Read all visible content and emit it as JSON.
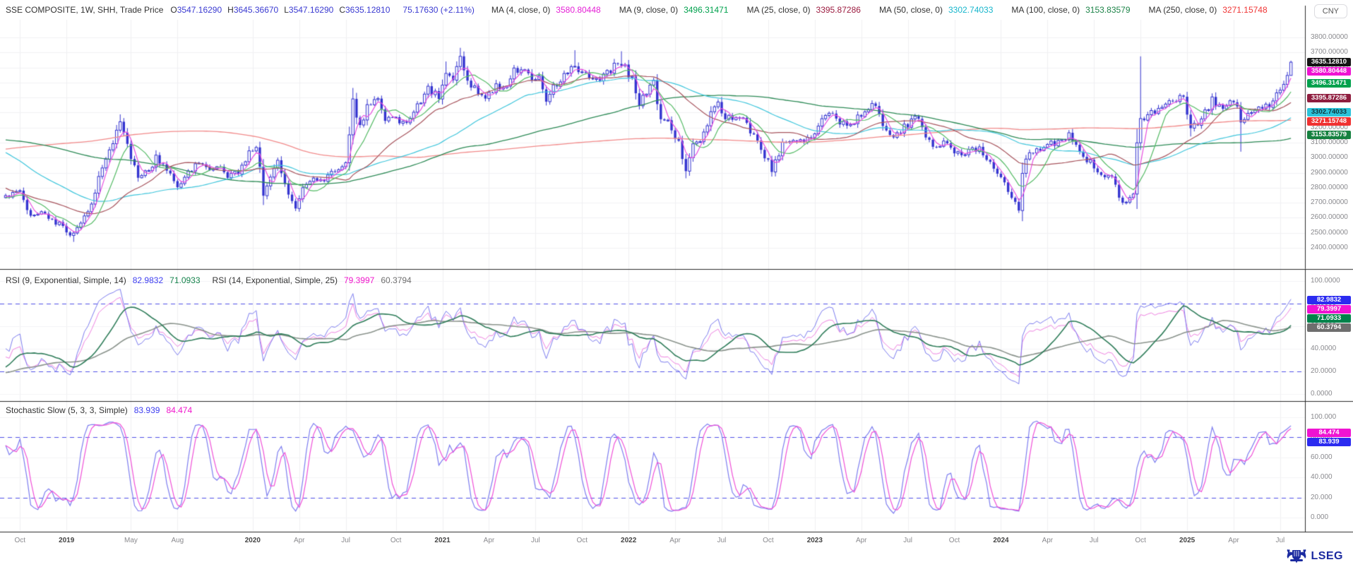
{
  "header": {
    "instrument": "SSE COMPOSITE, 1W, SHH, Trade Price",
    "ohlc": [
      {
        "label": "O",
        "value": "3547.16290"
      },
      {
        "label": "H",
        "value": "3645.36670"
      },
      {
        "label": "L",
        "value": "3547.16290"
      },
      {
        "label": "C",
        "value": "3635.12810"
      }
    ],
    "change": "75.17630 (+2.11%)",
    "mas": [
      {
        "label": "MA (4, close, 0)",
        "value": "3580.80448",
        "color": "#e520d6"
      },
      {
        "label": "MA (9, close, 0)",
        "value": "3496.31471",
        "color": "#00a14d"
      },
      {
        "label": "MA (25, close, 0)",
        "value": "3395.87286",
        "color": "#9c1c40"
      },
      {
        "label": "MA (50, close, 0)",
        "value": "3302.74033",
        "color": "#17b6cc"
      },
      {
        "label": "MA (100, close, 0)",
        "value": "3153.83579",
        "color": "#1e8449"
      },
      {
        "label": "MA (250, close, 0)",
        "value": "3271.15748",
        "color": "#f03535"
      }
    ],
    "currency": "CNY"
  },
  "main_panel": {
    "price_ticks": [
      "3800.00000",
      "3700.00000",
      "3600.00000",
      "3500.00000",
      "3400.00000",
      "3300.00000",
      "3200.00000",
      "3100.00000",
      "3000.00000",
      "2900.00000",
      "2800.00000",
      "2700.00000",
      "2600.00000",
      "2500.00000",
      "2400.00000"
    ],
    "badges": [
      {
        "text": "3635.12810",
        "value": 3635.1281,
        "bg": "#141414",
        "fg": "#ffffff"
      },
      {
        "text": "3580.80448",
        "value": 3580.80448,
        "bg": "#ef13d2",
        "fg": "#ffffff"
      },
      {
        "text": "3496.31471",
        "value": 3496.31471,
        "bg": "#00a14d",
        "fg": "#ffffff"
      },
      {
        "text": "3395.87286",
        "value": 3395.87286,
        "bg": "#8f1d3f",
        "fg": "#ffffff"
      },
      {
        "text": "3302.74033",
        "value": 3302.74033,
        "bg": "#2cc3da",
        "fg": "#10333a"
      },
      {
        "text": "3271.15748",
        "value": 3271.15748,
        "bg": "#f03131",
        "fg": "#ffffff"
      },
      {
        "text": "3153.83579",
        "value": 3153.83579,
        "bg": "#15813f",
        "fg": "#ffffff"
      }
    ]
  },
  "rsi_panel": {
    "title1": "RSI (9, Exponential, Simple, 14)",
    "value1": "82.9832",
    "value1s": "71.0933",
    "title2": "RSI (14, Exponential, Simple, 25)",
    "value2": "79.3997",
    "value2s": "60.3794",
    "ticks": [
      "100.0000",
      "80.0000",
      "60.0000",
      "40.0000",
      "20.0000",
      "0.0000"
    ],
    "tick_values": [
      100,
      80,
      60,
      40,
      20,
      0
    ],
    "badges": [
      {
        "text": "82.9832",
        "value": 82.9832,
        "bg": "#2b2bf0",
        "fg": "#ffffff"
      },
      {
        "text": "79.3997",
        "value": 79.3997,
        "bg": "#ef13d2",
        "fg": "#ffffff"
      },
      {
        "text": "71.0933",
        "value": 71.0933,
        "bg": "#00824a",
        "fg": "#ffffff"
      },
      {
        "text": "60.3794",
        "value": 60.3794,
        "bg": "#6e6e6e",
        "fg": "#ffffff"
      }
    ]
  },
  "stoch_panel": {
    "title": "Stochastic Slow (5, 3, 3, Simple)",
    "value_k": "83.939",
    "value_d": "84.474",
    "ticks": [
      "100.000",
      "80.000",
      "60.000",
      "40.000",
      "20.000",
      "0.000"
    ],
    "tick_values": [
      100,
      80,
      60,
      40,
      20,
      0
    ],
    "badges": [
      {
        "text": "84.474",
        "value": 84.474,
        "bg": "#ef13d2",
        "fg": "#ffffff"
      },
      {
        "text": "83.939",
        "value": 83.939,
        "bg": "#2b2bf0",
        "fg": "#ffffff"
      }
    ]
  },
  "x_axis": {
    "ticks": [
      {
        "wk": 4,
        "label": "Oct",
        "year": false
      },
      {
        "wk": 17,
        "label": "2019",
        "year": true
      },
      {
        "wk": 35,
        "label": "May",
        "year": false
      },
      {
        "wk": 48,
        "label": "Aug",
        "year": false
      },
      {
        "wk": 69,
        "label": "2020",
        "year": true
      },
      {
        "wk": 82,
        "label": "Apr",
        "year": false
      },
      {
        "wk": 95,
        "label": "Jul",
        "year": false
      },
      {
        "wk": 109,
        "label": "Oct",
        "year": false
      },
      {
        "wk": 122,
        "label": "2021",
        "year": true
      },
      {
        "wk": 135,
        "label": "Apr",
        "year": false
      },
      {
        "wk": 148,
        "label": "Jul",
        "year": false
      },
      {
        "wk": 161,
        "label": "Oct",
        "year": false
      },
      {
        "wk": 174,
        "label": "2022",
        "year": true
      },
      {
        "wk": 187,
        "label": "Apr",
        "year": false
      },
      {
        "wk": 200,
        "label": "Jul",
        "year": false
      },
      {
        "wk": 213,
        "label": "Oct",
        "year": false
      },
      {
        "wk": 226,
        "label": "2023",
        "year": true
      },
      {
        "wk": 239,
        "label": "Apr",
        "year": false
      },
      {
        "wk": 252,
        "label": "Jul",
        "year": false
      },
      {
        "wk": 265,
        "label": "Oct",
        "year": false
      },
      {
        "wk": 278,
        "label": "2024",
        "year": true
      },
      {
        "wk": 291,
        "label": "Apr",
        "year": false
      },
      {
        "wk": 304,
        "label": "Jul",
        "year": false
      },
      {
        "wk": 317,
        "label": "Oct",
        "year": false
      },
      {
        "wk": 330,
        "label": "2025",
        "year": true
      },
      {
        "wk": 343,
        "label": "Apr",
        "year": false
      },
      {
        "wk": 356,
        "label": "Jul",
        "year": false
      }
    ]
  },
  "branding": {
    "text": "LSEG"
  },
  "chart_data": {
    "type": "candlestick",
    "title": "SSE COMPOSITE, 1W, SHH, Trade Price",
    "currency": "CNY",
    "interval": "1W",
    "n_weeks": 360,
    "price_axis_range": [
      2259,
      3917
    ],
    "last_candle": {
      "o": 3547.1629,
      "h": 3645.3667,
      "l": 3547.1629,
      "c": 3635.1281,
      "change": 75.1763,
      "change_pct": 2.11
    },
    "close_anchors_prehistory": [
      [
        -260,
        2150
      ],
      [
        -236,
        2050
      ],
      [
        -221,
        2050
      ],
      [
        -201,
        2680
      ],
      [
        -191,
        3235
      ],
      [
        -176,
        4440
      ],
      [
        -168,
        4900
      ],
      [
        -161,
        3700
      ],
      [
        -156,
        3200
      ],
      [
        -148,
        3080
      ],
      [
        -141,
        3580
      ],
      [
        -136,
        3540
      ],
      [
        -132,
        2740
      ],
      [
        -121,
        3000
      ],
      [
        -106,
        2950
      ],
      [
        -96,
        3000
      ],
      [
        -86,
        3100
      ],
      [
        -76,
        3220
      ],
      [
        -66,
        3290
      ],
      [
        -56,
        3330
      ],
      [
        -44,
        3540
      ],
      [
        -36,
        3160
      ],
      [
        -26,
        3070
      ],
      [
        -16,
        2780
      ],
      [
        -6,
        2720
      ],
      [
        -1,
        2750
      ]
    ],
    "close_anchors": [
      [
        0,
        2740
      ],
      [
        4,
        2770
      ],
      [
        7,
        2600
      ],
      [
        10,
        2650
      ],
      [
        13,
        2590
      ],
      [
        16,
        2540
      ],
      [
        19,
        2480
      ],
      [
        21,
        2560
      ],
      [
        24,
        2680
      ],
      [
        27,
        2940
      ],
      [
        30,
        3090
      ],
      [
        32,
        3250
      ],
      [
        34,
        3080
      ],
      [
        37,
        2880
      ],
      [
        40,
        2900
      ],
      [
        42,
        3000
      ],
      [
        45,
        2920
      ],
      [
        48,
        2790
      ],
      [
        51,
        2890
      ],
      [
        54,
        2980
      ],
      [
        56,
        2930
      ],
      [
        59,
        2950
      ],
      [
        62,
        2880
      ],
      [
        65,
        2900
      ],
      [
        68,
        3040
      ],
      [
        70,
        3090
      ],
      [
        72,
        2750
      ],
      [
        74,
        2880
      ],
      [
        76,
        2970
      ],
      [
        79,
        2750
      ],
      [
        81,
        2660
      ],
      [
        83,
        2800
      ],
      [
        86,
        2860
      ],
      [
        89,
        2850
      ],
      [
        92,
        2920
      ],
      [
        95,
        2980
      ],
      [
        96,
        3150
      ],
      [
        97,
        3380
      ],
      [
        99,
        3200
      ],
      [
        101,
        3350
      ],
      [
        104,
        3400
      ],
      [
        106,
        3260
      ],
      [
        109,
        3270
      ],
      [
        112,
        3220
      ],
      [
        115,
        3360
      ],
      [
        118,
        3450
      ],
      [
        121,
        3400
      ],
      [
        123,
        3570
      ],
      [
        125,
        3500
      ],
      [
        127,
        3680
      ],
      [
        129,
        3510
      ],
      [
        132,
        3440
      ],
      [
        134,
        3420
      ],
      [
        137,
        3470
      ],
      [
        140,
        3490
      ],
      [
        142,
        3580
      ],
      [
        145,
        3590
      ],
      [
        147,
        3530
      ],
      [
        149,
        3530
      ],
      [
        151,
        3400
      ],
      [
        154,
        3500
      ],
      [
        156,
        3560
      ],
      [
        159,
        3615
      ],
      [
        161,
        3570
      ],
      [
        164,
        3520
      ],
      [
        167,
        3540
      ],
      [
        170,
        3610
      ],
      [
        172,
        3640
      ],
      [
        175,
        3520
      ],
      [
        177,
        3360
      ],
      [
        179,
        3450
      ],
      [
        181,
        3490
      ],
      [
        183,
        3250
      ],
      [
        185,
        3250
      ],
      [
        188,
        3090
      ],
      [
        190,
        2890
      ],
      [
        192,
        3080
      ],
      [
        194,
        3130
      ],
      [
        197,
        3280
      ],
      [
        199,
        3390
      ],
      [
        201,
        3250
      ],
      [
        204,
        3280
      ],
      [
        207,
        3230
      ],
      [
        210,
        3100
      ],
      [
        212,
        3020
      ],
      [
        214,
        2920
      ],
      [
        217,
        3080
      ],
      [
        220,
        3130
      ],
      [
        223,
        3090
      ],
      [
        226,
        3160
      ],
      [
        228,
        3260
      ],
      [
        231,
        3280
      ],
      [
        234,
        3230
      ],
      [
        237,
        3250
      ],
      [
        240,
        3320
      ],
      [
        243,
        3350
      ],
      [
        245,
        3210
      ],
      [
        248,
        3150
      ],
      [
        251,
        3200
      ],
      [
        254,
        3280
      ],
      [
        257,
        3150
      ],
      [
        260,
        3060
      ],
      [
        263,
        3110
      ],
      [
        266,
        3020
      ],
      [
        269,
        3040
      ],
      [
        272,
        3050
      ],
      [
        275,
        2970
      ],
      [
        278,
        2880
      ],
      [
        281,
        2730
      ],
      [
        283,
        2640
      ],
      [
        284,
        2880
      ],
      [
        285,
        3000
      ],
      [
        288,
        3050
      ],
      [
        291,
        3090
      ],
      [
        294,
        3100
      ],
      [
        297,
        3150
      ],
      [
        300,
        3030
      ],
      [
        303,
        2970
      ],
      [
        306,
        2900
      ],
      [
        309,
        2860
      ],
      [
        312,
        2700
      ],
      [
        315,
        2750
      ],
      [
        316,
        3088
      ],
      [
        317,
        3260
      ],
      [
        318,
        3230
      ],
      [
        320,
        3310
      ],
      [
        323,
        3330
      ],
      [
        326,
        3370
      ],
      [
        329,
        3400
      ],
      [
        331,
        3210
      ],
      [
        334,
        3250
      ],
      [
        337,
        3380
      ],
      [
        340,
        3340
      ],
      [
        342,
        3400
      ],
      [
        344,
        3350
      ],
      [
        345,
        3240
      ],
      [
        347,
        3280
      ],
      [
        350,
        3340
      ],
      [
        353,
        3360
      ],
      [
        356,
        3450
      ],
      [
        357,
        3510
      ],
      [
        358,
        3547
      ],
      [
        359,
        3635
      ]
    ],
    "wick_overrides": [
      [
        19,
        null,
        2440
      ],
      [
        32,
        3288,
        null
      ],
      [
        72,
        null,
        2685
      ],
      [
        81,
        null,
        2646
      ],
      [
        97,
        3458,
        null
      ],
      [
        123,
        3640,
        null
      ],
      [
        127,
        3731,
        null
      ],
      [
        159,
        3715,
        null
      ],
      [
        172,
        3708,
        null
      ],
      [
        190,
        null,
        2863
      ],
      [
        214,
        null,
        2885
      ],
      [
        283,
        null,
        2635
      ],
      [
        312,
        null,
        2689
      ],
      [
        317,
        3674,
        3088
      ],
      [
        331,
        null,
        3141
      ],
      [
        345,
        null,
        3040
      ]
    ],
    "moving_averages": [
      {
        "period": 4,
        "source": "close",
        "current": 3580.80448,
        "line": "#e84fe0"
      },
      {
        "period": 9,
        "source": "close",
        "current": 3496.31471,
        "line": "#55bb66"
      },
      {
        "period": 25,
        "source": "close",
        "current": 3395.87286,
        "line": "#a8555e"
      },
      {
        "period": 50,
        "source": "close",
        "current": 3302.74033,
        "line": "#3fc6dc"
      },
      {
        "period": 100,
        "source": "close",
        "current": 3153.83579,
        "line": "#2e8b57"
      },
      {
        "period": 250,
        "source": "close",
        "current": 3271.15748,
        "line": "#f28b8b"
      }
    ],
    "rsi": {
      "series": [
        {
          "period": 9,
          "smoothing": 14,
          "current": 82.9832,
          "current_smoothed": 71.0933,
          "line": "#7d7df0",
          "smoothed_line": "#2f7d5a"
        },
        {
          "period": 14,
          "smoothing": 25,
          "current": 79.3997,
          "current_smoothed": 60.3794,
          "line": "#ef82e2",
          "smoothed_line": "#8a938c"
        }
      ],
      "thresholds": [
        80,
        20
      ],
      "range": [
        0,
        100
      ]
    },
    "stochastic": {
      "params": [
        5,
        3,
        3
      ],
      "k_current": 83.939,
      "d_current": 84.474,
      "k_line": "#7d7df0",
      "d_line": "#f050d8",
      "thresholds": [
        80,
        20
      ],
      "range": [
        0,
        100
      ]
    },
    "candle_colors": {
      "up_fill": "#ffffff",
      "up_stroke": "#3434d0",
      "down_fill": "#3434d0",
      "wick": "#3434d0"
    },
    "threshold_line_color": "#5050e8",
    "grid_on": true
  }
}
